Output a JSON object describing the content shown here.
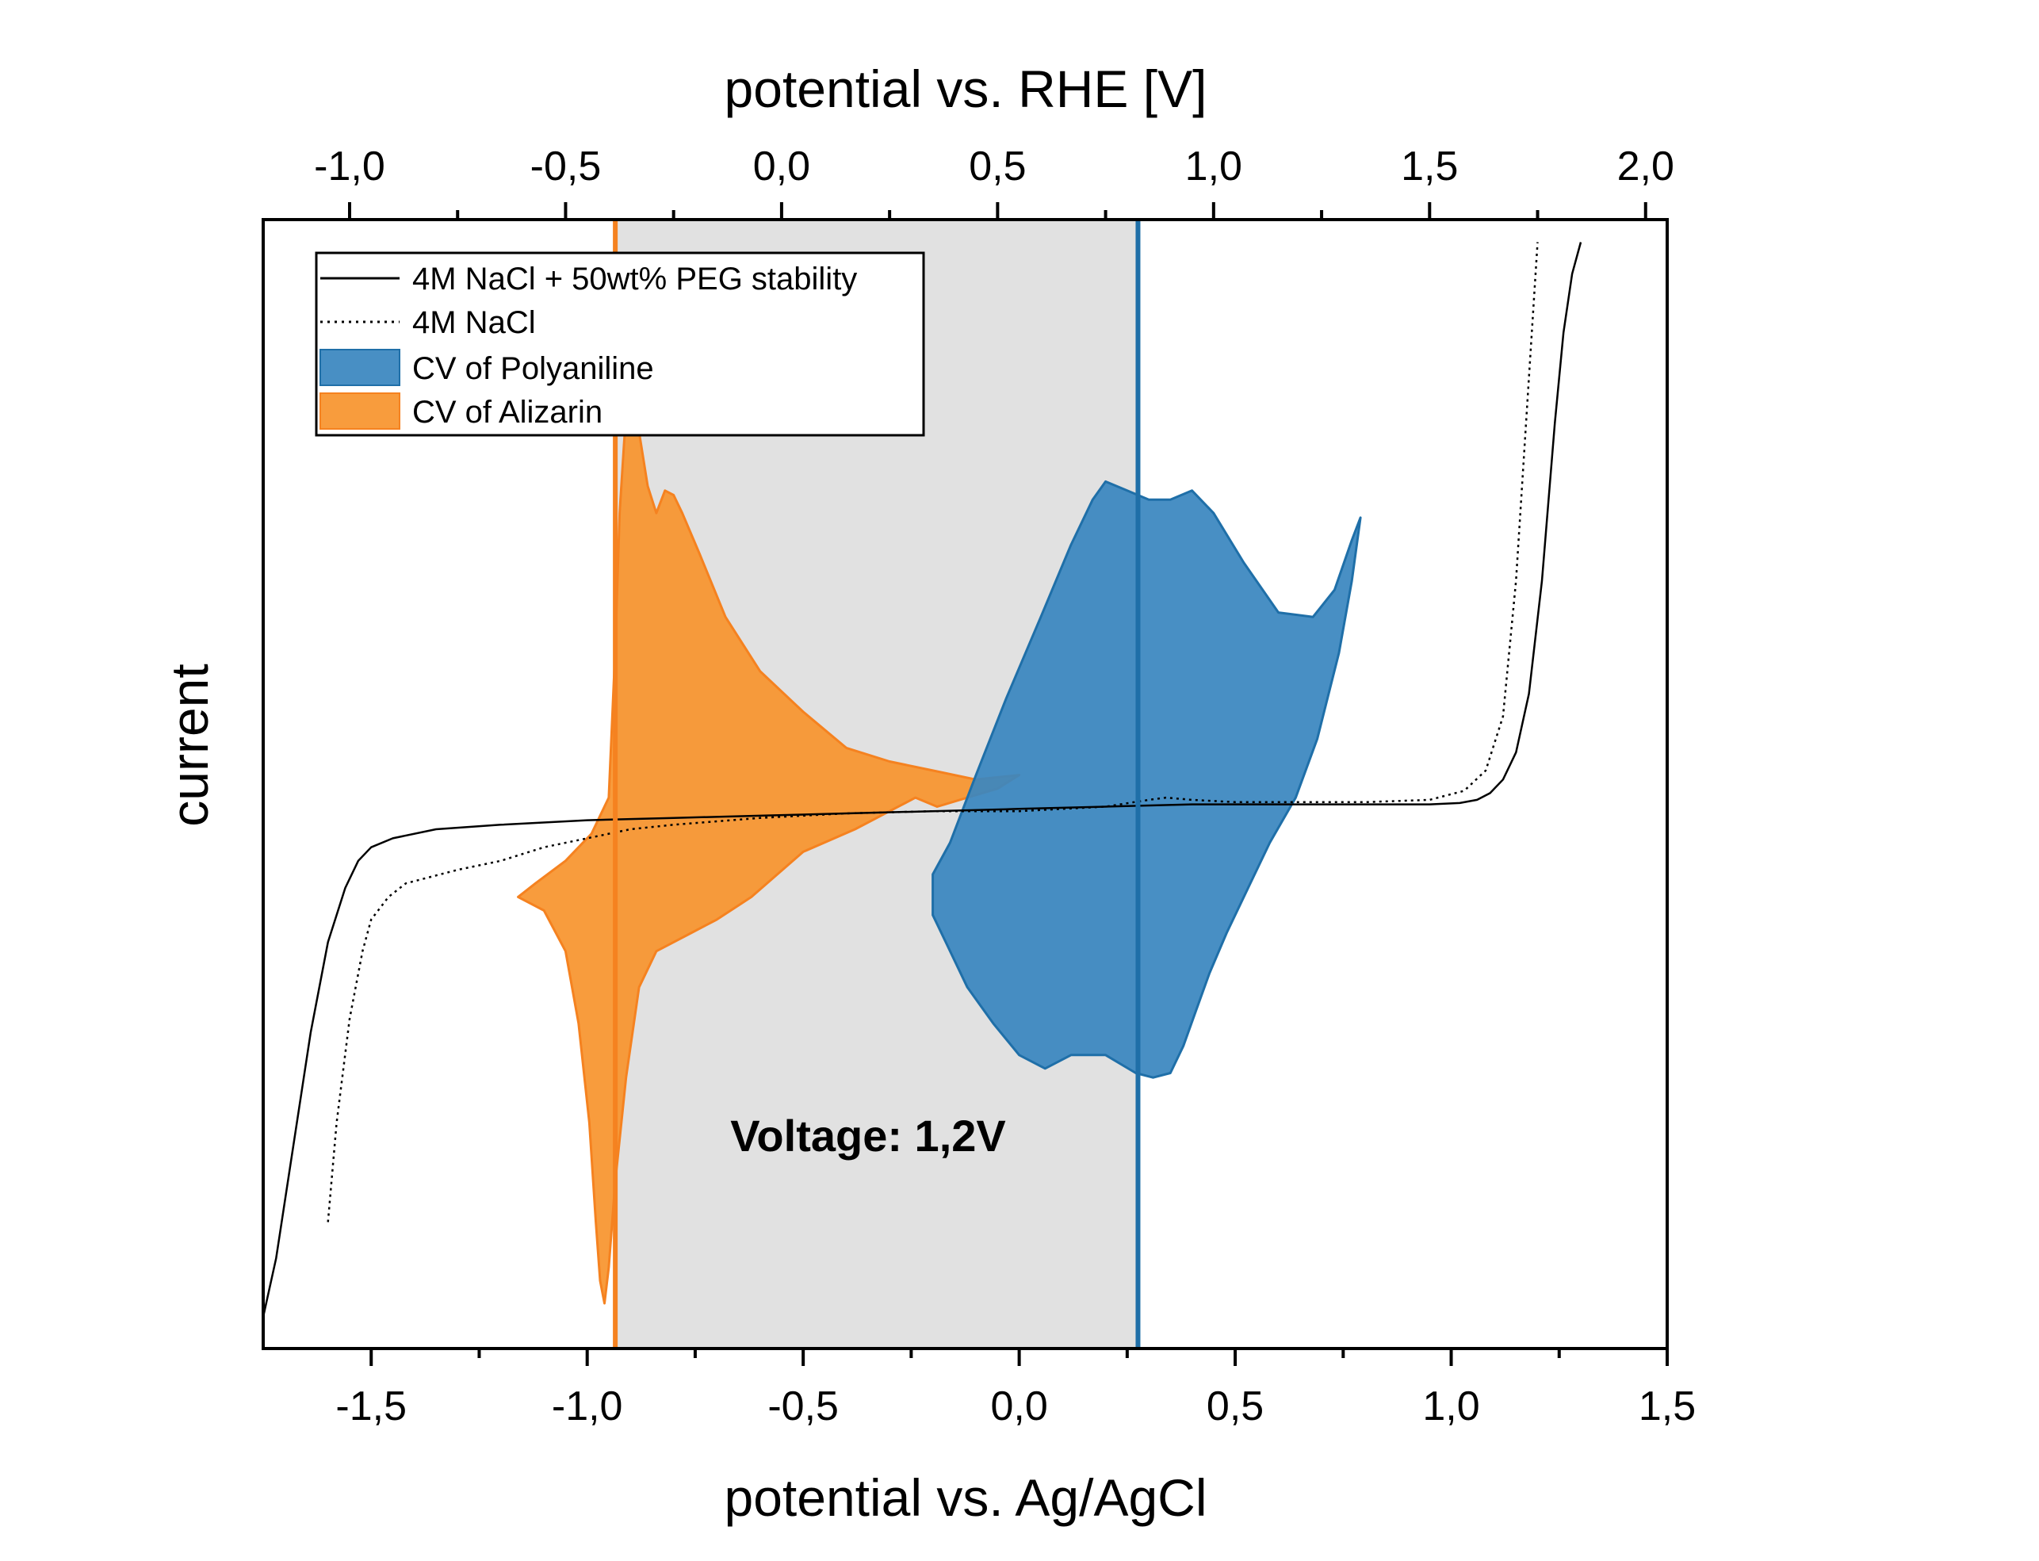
{
  "chart_data": {
    "type": "line",
    "title": "",
    "xlabel": "potential vs. Ag/AgCl",
    "x2label": "potential vs. RHE [V]",
    "ylabel": "current",
    "xlim": [
      -1.75,
      1.5
    ],
    "x2lim": [
      -1.2,
      2.05
    ],
    "ylim": [
      -1.0,
      1.5
    ],
    "x_ticks": [
      "-1,5",
      "-1,0",
      "-0,5",
      "0,0",
      "0,5",
      "1,0",
      "1,5"
    ],
    "x_tick_values": [
      -1.5,
      -1.0,
      -0.5,
      0.0,
      0.5,
      1.0,
      1.5
    ],
    "x2_ticks": [
      "-1,0",
      "-0,5",
      "0,0",
      "0,5",
      "1,0",
      "1,5",
      "2,0"
    ],
    "x2_tick_values": [
      -1.0,
      -0.5,
      0.0,
      0.5,
      1.0,
      1.5,
      2.0
    ],
    "y_ticks_shown": false,
    "grid": false,
    "legend_position": "top-left",
    "legend": [
      {
        "label": "4M NaCl + 50wt% PEG stability",
        "style": "solid-line"
      },
      {
        "label": "4M NaCl",
        "style": "dotted-line"
      },
      {
        "label": "CV of Polyaniline",
        "style": "fill",
        "color": "#3a86bf"
      },
      {
        "label": "CV of Alizarin",
        "style": "fill",
        "color": "#f7952e"
      }
    ],
    "window": {
      "x_min": -0.935,
      "x_max": 0.275,
      "fill_color": "#e1e1e1"
    },
    "vlines": [
      {
        "x": -0.935,
        "color": "#f58220"
      },
      {
        "x": 0.275,
        "color": "#1f6fa8"
      }
    ],
    "annotation": "Voltage: 1,2V",
    "series": [
      {
        "name": "4M NaCl + 50wt% PEG stability",
        "style": "solid",
        "color": "#000000",
        "x": [
          -1.75,
          -1.72,
          -1.68,
          -1.64,
          -1.6,
          -1.56,
          -1.53,
          -1.5,
          -1.45,
          -1.35,
          -1.2,
          -1.0,
          -0.8,
          -0.6,
          -0.4,
          -0.2,
          0.0,
          0.2,
          0.4,
          0.6,
          0.8,
          0.95,
          1.02,
          1.06,
          1.09,
          1.12,
          1.15,
          1.18,
          1.21,
          1.24,
          1.26,
          1.28,
          1.3
        ],
        "y": [
          -0.93,
          -0.8,
          -0.55,
          -0.3,
          -0.1,
          0.02,
          0.08,
          0.11,
          0.13,
          0.15,
          0.16,
          0.17,
          0.175,
          0.18,
          0.185,
          0.19,
          0.195,
          0.2,
          0.205,
          0.205,
          0.205,
          0.205,
          0.208,
          0.215,
          0.23,
          0.26,
          0.32,
          0.45,
          0.7,
          1.05,
          1.25,
          1.38,
          1.45
        ]
      },
      {
        "name": "4M NaCl",
        "style": "dotted",
        "color": "#000000",
        "x": [
          -1.6,
          -1.58,
          -1.55,
          -1.52,
          -1.5,
          -1.46,
          -1.42,
          -1.38,
          -1.34,
          -1.3,
          -1.2,
          -1.1,
          -1.0,
          -0.9,
          -0.8,
          -0.6,
          -0.4,
          -0.2,
          0.0,
          0.1,
          0.2,
          0.3,
          0.34,
          0.4,
          0.5,
          0.6,
          0.8,
          0.95,
          1.03,
          1.08,
          1.12,
          1.15,
          1.18,
          1.2
        ],
        "y": [
          -0.72,
          -0.5,
          -0.27,
          -0.12,
          -0.05,
          0.0,
          0.03,
          0.04,
          0.05,
          0.06,
          0.08,
          0.11,
          0.13,
          0.15,
          0.16,
          0.175,
          0.185,
          0.19,
          0.19,
          0.195,
          0.2,
          0.215,
          0.22,
          0.215,
          0.21,
          0.21,
          0.21,
          0.215,
          0.235,
          0.28,
          0.4,
          0.7,
          1.15,
          1.45
        ]
      }
    ],
    "regions": [
      {
        "name": "CV of Alizarin",
        "color": "#f7952e",
        "x": [
          -1.16,
          -1.12,
          -1.05,
          -0.99,
          -0.95,
          -0.935,
          -0.925,
          -0.915,
          -0.905,
          -0.895,
          -0.88,
          -0.86,
          -0.84,
          -0.82,
          -0.8,
          -0.78,
          -0.74,
          -0.68,
          -0.6,
          -0.5,
          -0.4,
          -0.3,
          -0.2,
          -0.1,
          0.0,
          -0.05,
          -0.12,
          -0.19,
          -0.24,
          -0.3,
          -0.38,
          -0.5,
          -0.62,
          -0.7,
          -0.76,
          -0.8,
          -0.84,
          -0.88,
          -0.91,
          -0.935,
          -0.95,
          -0.96,
          -0.97,
          -0.98,
          -0.995,
          -1.02,
          -1.05,
          -1.1,
          -1.16
        ],
        "y": [
          0.0,
          0.03,
          0.08,
          0.14,
          0.22,
          0.55,
          0.85,
          1.0,
          1.14,
          1.19,
          1.03,
          0.91,
          0.85,
          0.9,
          0.89,
          0.85,
          0.76,
          0.62,
          0.5,
          0.41,
          0.33,
          0.3,
          0.28,
          0.26,
          0.27,
          0.24,
          0.22,
          0.2,
          0.22,
          0.19,
          0.15,
          0.1,
          0.0,
          -0.05,
          -0.08,
          -0.1,
          -0.12,
          -0.2,
          -0.4,
          -0.63,
          -0.82,
          -0.9,
          -0.85,
          -0.72,
          -0.5,
          -0.28,
          -0.12,
          -0.03,
          0.0
        ]
      },
      {
        "name": "CV of Polyaniline",
        "color": "#3a86bf",
        "x": [
          -0.2,
          -0.16,
          -0.1,
          -0.03,
          0.05,
          0.12,
          0.17,
          0.2,
          0.25,
          0.3,
          0.35,
          0.4,
          0.45,
          0.52,
          0.6,
          0.68,
          0.73,
          0.77,
          0.79,
          0.77,
          0.74,
          0.69,
          0.64,
          0.58,
          0.53,
          0.48,
          0.44,
          0.41,
          0.38,
          0.35,
          0.31,
          0.27,
          0.2,
          0.12,
          0.06,
          0.0,
          -0.06,
          -0.12,
          -0.17,
          -0.2,
          -0.2
        ],
        "y": [
          0.05,
          0.12,
          0.27,
          0.44,
          0.62,
          0.78,
          0.88,
          0.92,
          0.9,
          0.88,
          0.88,
          0.9,
          0.85,
          0.74,
          0.63,
          0.62,
          0.68,
          0.79,
          0.84,
          0.7,
          0.54,
          0.35,
          0.22,
          0.12,
          0.02,
          -0.08,
          -0.17,
          -0.25,
          -0.33,
          -0.39,
          -0.4,
          -0.39,
          -0.35,
          -0.35,
          -0.38,
          -0.35,
          -0.28,
          -0.2,
          -0.1,
          -0.04,
          0.05
        ]
      }
    ]
  }
}
